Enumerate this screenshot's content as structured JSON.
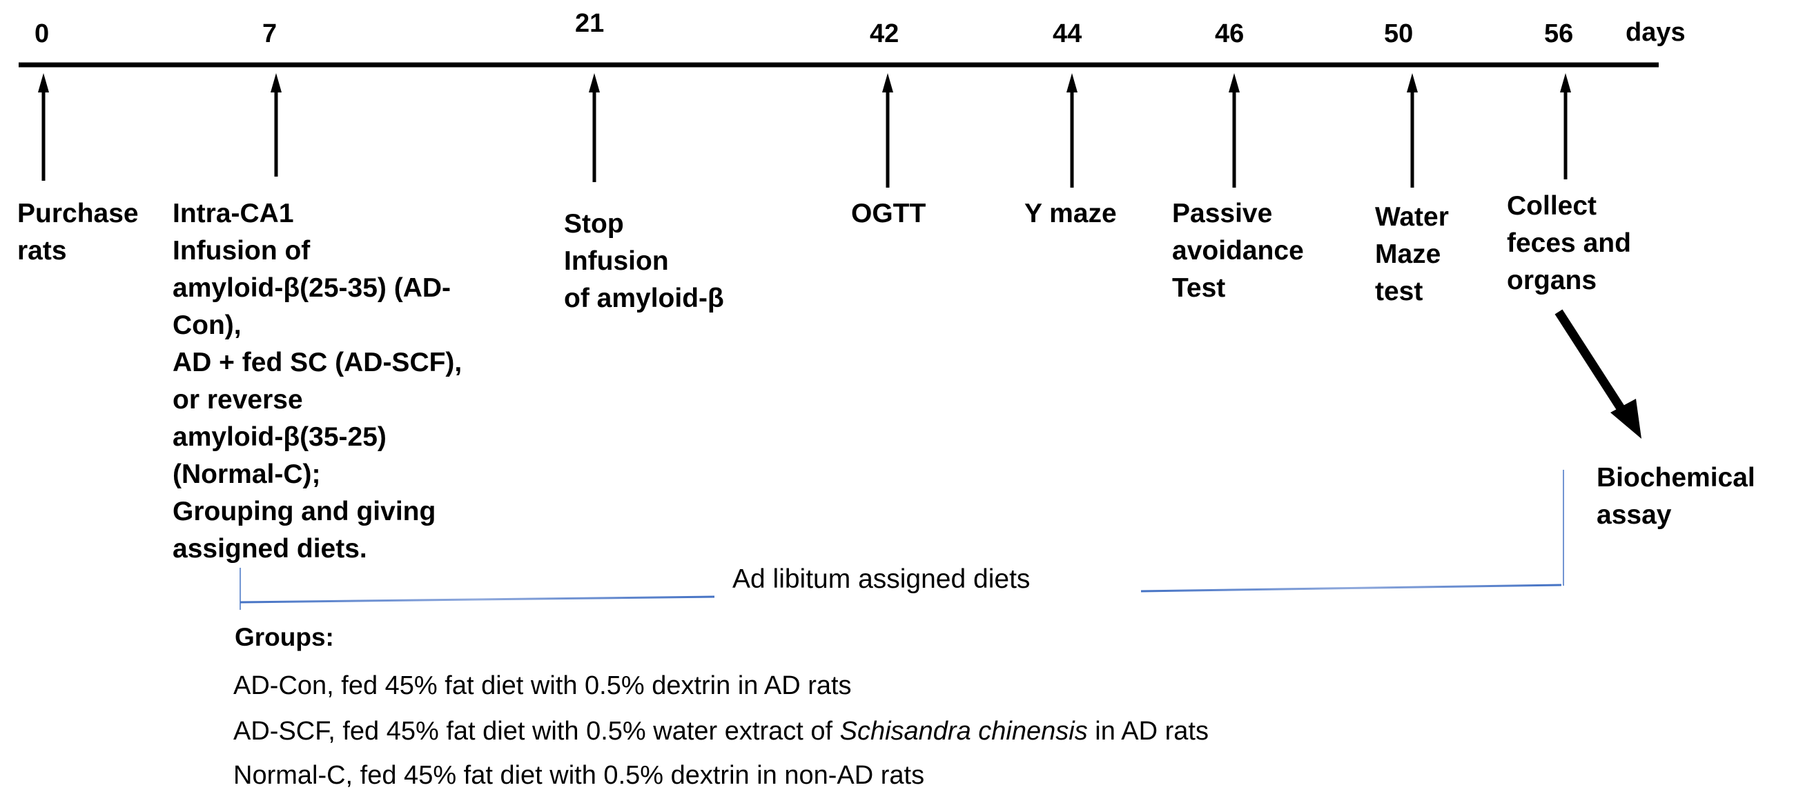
{
  "timeline": {
    "unit_label": "days",
    "events": [
      {
        "day": "0",
        "label": "Purchase\nrats"
      },
      {
        "day": "7",
        "label": "Intra-CA1\nInfusion of\namyloid-β(25-35) (AD-\nCon),\nAD + fed SC (AD-SCF),\nor reverse\namyloid-β(35-25)\n(Normal-C);\nGrouping and giving\nassigned diets."
      },
      {
        "day": "21",
        "label": "Stop\nInfusion\nof amyloid-β"
      },
      {
        "day": "42",
        "label": "OGTT"
      },
      {
        "day": "44",
        "label": "Y maze"
      },
      {
        "day": "46",
        "label": "Passive\navoidance\nTest"
      },
      {
        "day": "50",
        "label": "Water\nMaze\ntest"
      },
      {
        "day": "56",
        "label": "Collect\nfeces and\norgans"
      }
    ]
  },
  "followup": {
    "label": "Biochemical\nassay"
  },
  "diet_bracket": {
    "label": "Ad libitum assigned diets",
    "color": "#4472c4"
  },
  "groups": {
    "title": "Groups:",
    "items": [
      {
        "text": "AD-Con, fed 45% fat diet with 0.5% dextrin in AD rats"
      },
      {
        "prefix": "AD-SCF, fed 45% fat diet with 0.5% water extract of ",
        "italic": "Schisandra chinensis",
        "suffix": " in AD rats"
      },
      {
        "text": "Normal-C, fed 45% fat diet with 0.5% dextrin in non-AD rats"
      }
    ]
  }
}
